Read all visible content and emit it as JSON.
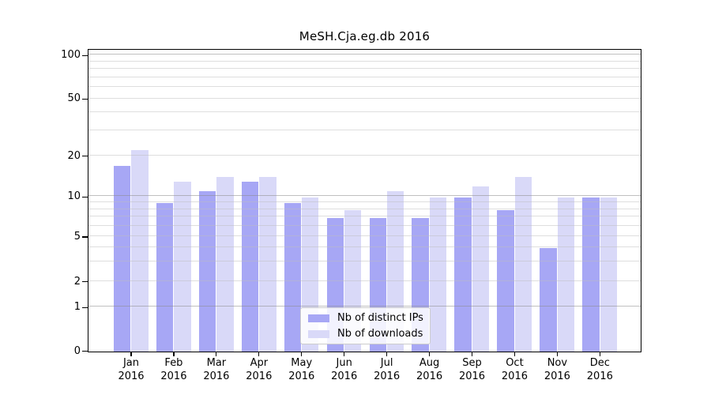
{
  "chart_data": {
    "type": "bar",
    "title": "MeSH.Cja.eg.db 2016",
    "categories": [
      "Jan",
      "Feb",
      "Mar",
      "Apr",
      "May",
      "Jun",
      "Jul",
      "Aug",
      "Sep",
      "Oct",
      "Nov",
      "Dec"
    ],
    "year_label": "2016",
    "series": [
      {
        "name": "Nb of distinct IPs",
        "color": "#a7a7f5",
        "values": [
          17,
          9,
          11,
          13,
          9,
          7,
          7,
          7,
          10,
          8,
          4,
          10
        ]
      },
      {
        "name": "Nb of downloads",
        "color": "#d9d9f8",
        "values": [
          22,
          13,
          14,
          14,
          10,
          8,
          11,
          10,
          12,
          14,
          10,
          10
        ]
      }
    ],
    "xlabel": "",
    "ylabel": "",
    "y_axis": {
      "scale": "log-like (linear 0-1, logarithmic above)",
      "ylim": [
        0,
        104
      ],
      "tick_values": [
        0,
        1,
        2,
        5,
        10,
        20,
        50,
        100
      ],
      "tick_labels": [
        "0",
        "1",
        "2",
        "5",
        "10",
        "20",
        "50",
        "100"
      ],
      "major_gridline_values": [
        1,
        10,
        100
      ],
      "minor_gridline_values": [
        2,
        3,
        4,
        5,
        6,
        7,
        8,
        9,
        20,
        30,
        40,
        50,
        60,
        70,
        80,
        90
      ],
      "scale_anchors": [
        [
          0,
          0.0
        ],
        [
          1,
          0.1458
        ],
        [
          2,
          0.2312
        ],
        [
          5,
          0.3796
        ],
        [
          10,
          0.5123
        ],
        [
          20,
          0.6474
        ],
        [
          50,
          0.8369
        ],
        [
          100,
          0.9817
        ]
      ]
    },
    "grid": "horizontal",
    "legend_position": "inside-bottom-center"
  },
  "colors": {
    "background": "#ffffff",
    "bar_distinct_ips": "#a7a7f5",
    "bar_downloads": "#d9d9f8",
    "gridline_major": "rgba(140,140,140,0.55)",
    "gridline_minor": "rgba(190,190,190,0.5)",
    "axis": "#000000",
    "legend_border": "#cccccc"
  }
}
